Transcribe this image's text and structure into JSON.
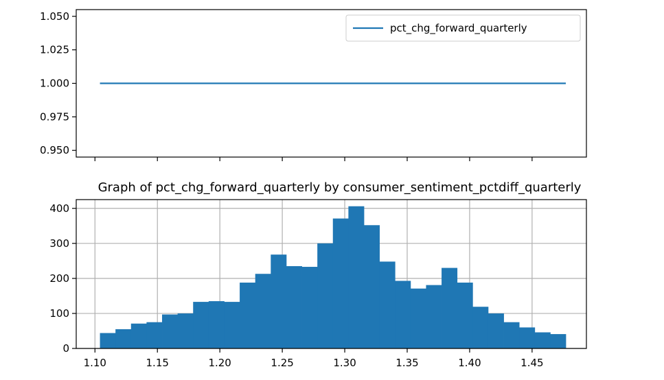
{
  "chart_data": [
    {
      "type": "line",
      "title": "",
      "xlabel": "",
      "ylabel": "",
      "legend": {
        "placement": "top-right",
        "entries": [
          "pct_chg_forward_quarterly"
        ]
      },
      "grid": false,
      "xlim": [
        1.085,
        1.4935
      ],
      "ylim": [
        0.945,
        1.055
      ],
      "yticks": [
        "0.950",
        "0.975",
        "1.000",
        "1.025",
        "1.050"
      ],
      "xtick_labels_shown": false,
      "series": [
        {
          "name": "pct_chg_forward_quarterly",
          "color": "#1f77b4",
          "x": [
            1.104,
            1.477
          ],
          "y": [
            1.0,
            1.0
          ]
        }
      ]
    },
    {
      "type": "bar",
      "subtype": "histogram",
      "title": "Graph of pct_chg_forward_quarterly by consumer_sentiment_pctdiff_quarterly",
      "xlabel": "",
      "ylabel": "",
      "grid": true,
      "xlim": [
        1.085,
        1.4935
      ],
      "ylim": [
        0,
        425
      ],
      "xticks": [
        "1.10",
        "1.15",
        "1.20",
        "1.25",
        "1.30",
        "1.35",
        "1.40",
        "1.45"
      ],
      "yticks": [
        "0",
        "100",
        "200",
        "300",
        "400"
      ],
      "bar_color": "#1f77b4",
      "bin_start": 1.104,
      "bin_end": 1.477,
      "values": [
        44,
        55,
        71,
        75,
        97,
        100,
        133,
        135,
        133,
        188,
        213,
        268,
        235,
        233,
        300,
        371,
        406,
        352,
        248,
        193,
        171,
        181,
        230,
        188,
        119,
        100,
        75,
        60,
        46,
        41
      ]
    }
  ]
}
